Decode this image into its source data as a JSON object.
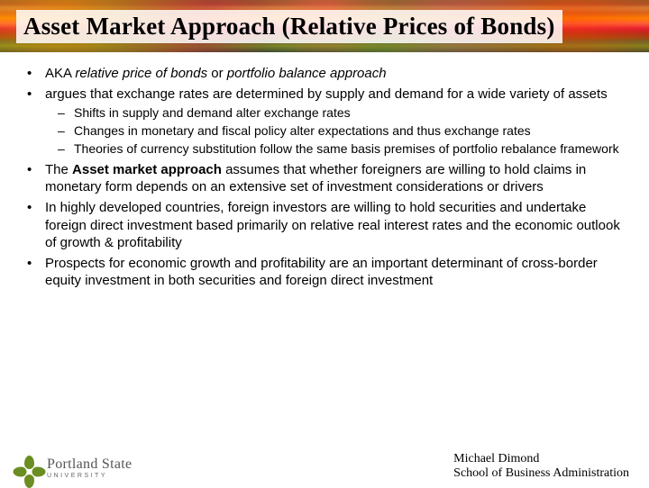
{
  "title": "Asset Market Approach (Relative Prices of Bonds)",
  "bullets": {
    "b1_pre": "AKA ",
    "b1_em1": "relative price of bonds",
    "b1_mid": " or ",
    "b1_em2": "portfolio balance approach",
    "b2": "argues that exchange rates are determined by supply and demand for a wide variety of assets",
    "sub1": "Shifts in supply and demand alter exchange rates",
    "sub2": "Changes in monetary and fiscal policy alter expectations and thus exchange rates",
    "sub3": "Theories of currency substitution follow the same basis premises of portfolio rebalance framework",
    "b3_pre": "The ",
    "b3_bold": "Asset market approach",
    "b3_post": " assumes that whether foreigners are willing to hold claims in monetary form depends on an extensive set of investment considerations or drivers",
    "b4": "In highly developed countries, foreign investors are willing to hold securities and undertake foreign direct investment based primarily on relative real interest rates and the economic outlook of growth & profitability",
    "b5": "Prospects for economic growth and profitability are an important determinant of cross-border equity investment in both securities and foreign direct investment"
  },
  "logo": {
    "name": "Portland State",
    "sub": "UNIVERSITY"
  },
  "attribution": {
    "line1": "Michael Dimond",
    "line2": "School of Business Administration"
  },
  "colors": {
    "petal": "#6b8e23",
    "text": "#000000"
  }
}
